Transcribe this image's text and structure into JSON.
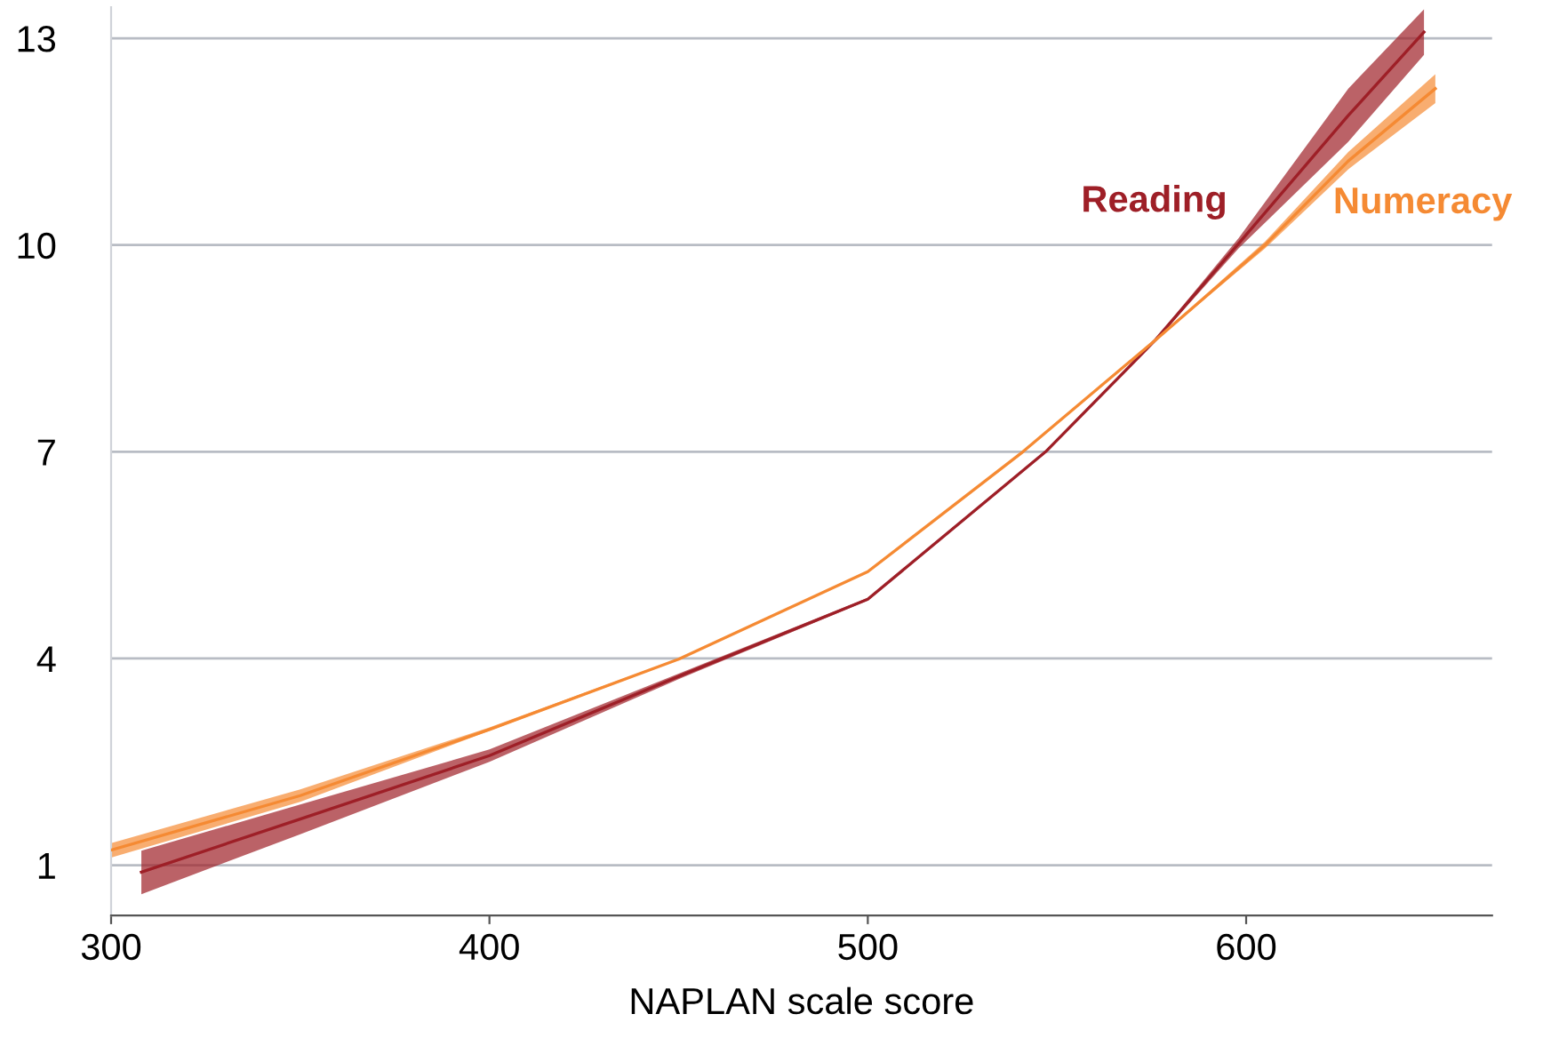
{
  "chart_data": {
    "type": "line",
    "xlabel": "NAPLAN scale score",
    "xlim": [
      300,
      665
    ],
    "xticks": [
      300,
      400,
      500,
      600
    ],
    "ylim": [
      0.27,
      13.45
    ],
    "yticks": [
      1,
      4,
      7,
      10,
      13
    ],
    "grid": "y",
    "legend": false,
    "series": [
      {
        "name": "Reading",
        "color": "#9e1f27",
        "x": [
          308,
          350,
          400,
          450,
          500,
          547,
          576,
          598,
          627,
          647
        ],
        "values": [
          0.9,
          1.67,
          2.59,
          3.74,
          4.86,
          7.0,
          8.62,
          10.02,
          11.88,
          13.09
        ],
        "lower": [
          0.58,
          1.45,
          2.5,
          3.7,
          4.84,
          6.98,
          8.6,
          9.95,
          11.5,
          12.76
        ],
        "upper": [
          1.21,
          1.88,
          2.68,
          3.78,
          4.88,
          7.02,
          8.64,
          10.1,
          12.27,
          13.42
        ]
      },
      {
        "name": "Numeracy",
        "color": "#f58a33",
        "x": [
          300,
          350,
          400,
          450,
          500,
          541,
          576,
          605,
          627,
          650
        ],
        "values": [
          1.22,
          2.01,
          2.97,
          3.99,
          5.26,
          7.0,
          8.62,
          10.0,
          11.22,
          12.27
        ],
        "lower": [
          1.11,
          1.92,
          2.95,
          3.98,
          5.25,
          7.0,
          8.61,
          9.95,
          11.1,
          12.06
        ],
        "upper": [
          1.32,
          2.1,
          3.0,
          4.0,
          5.27,
          7.0,
          8.63,
          10.05,
          11.35,
          12.48
        ]
      }
    ]
  }
}
